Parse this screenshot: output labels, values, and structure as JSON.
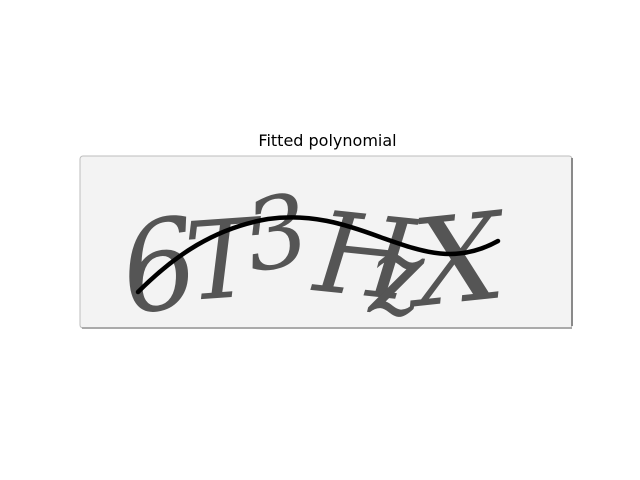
{
  "figure": {
    "title": "Fitted polynomial"
  },
  "captcha": {
    "text": "6T3HzX",
    "glyphs": [
      "6",
      "T",
      "3",
      "H",
      "z",
      "X"
    ],
    "glyph_color": "#555555",
    "background_color": "#f3f3f3",
    "border_color": "#9a9a9a"
  },
  "overlay": {
    "curve_color": "#000000",
    "description": "fitted polynomial curve"
  }
}
